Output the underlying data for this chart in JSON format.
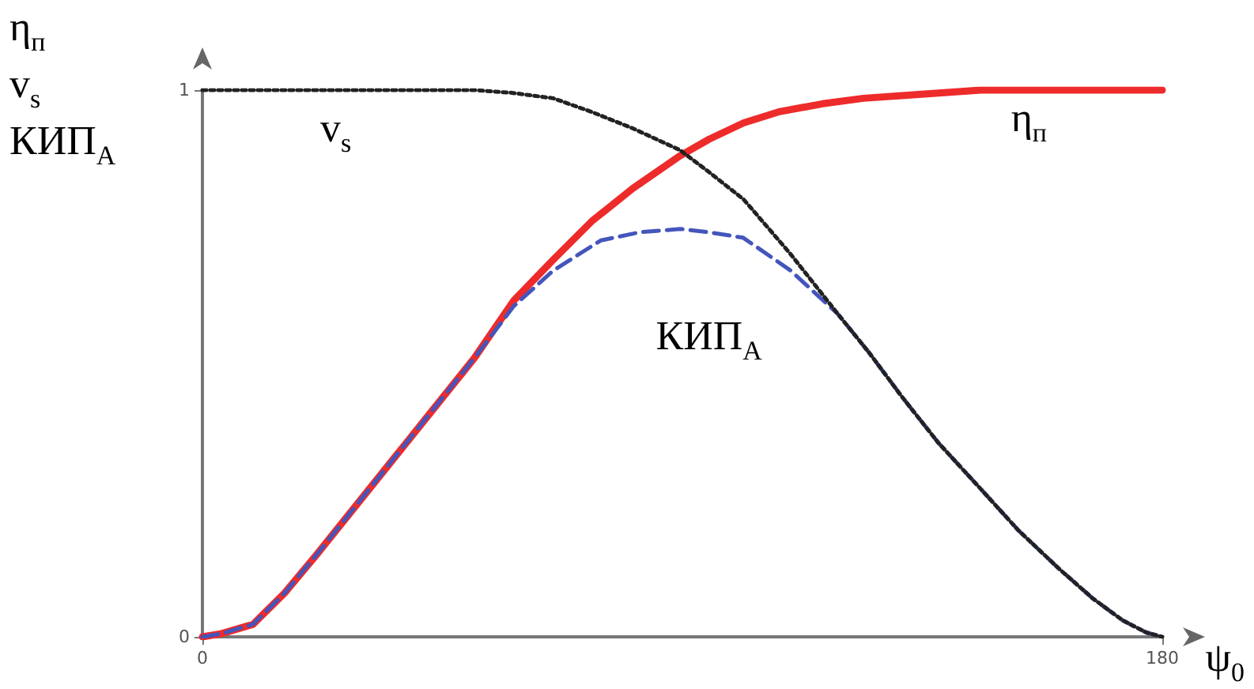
{
  "chart_data": {
    "type": "line",
    "xlabel": "ψ$_{0}$",
    "ylabel": "η$_{п}$\nv$_{s}$\nКИП$_{А}$",
    "xlim": [
      0,
      180
    ],
    "ylim": [
      0,
      1
    ],
    "xticks": [
      0,
      180
    ],
    "yticks": [
      0,
      1
    ],
    "grid": false,
    "legend": false,
    "marker": "none",
    "series": [
      {
        "name": "η$_{п}$",
        "color": "#ee2b2b",
        "line_style": "solid",
        "x": [
          0,
          3.6,
          9.5,
          15.4,
          21.4,
          28.8,
          36.2,
          43.6,
          51,
          58.4,
          65.8,
          73,
          80.7,
          89.6,
          95,
          101.5,
          108,
          116.3,
          124,
          131.2,
          146,
          160,
          180
        ],
        "values": [
          0,
          0.006,
          0.023,
          0.08,
          0.15,
          0.24,
          0.33,
          0.42,
          0.51,
          0.615,
          0.69,
          0.76,
          0.82,
          0.88,
          0.91,
          0.94,
          0.96,
          0.975,
          0.985,
          0.99,
          1,
          1,
          1
        ]
      },
      {
        "name": "КИП$_{А}$",
        "color": "#4455bb",
        "line_style": "dashed",
        "x": [
          0,
          3.6,
          9.5,
          15.4,
          21.4,
          28.8,
          36.2,
          43.6,
          51,
          58.4,
          65.8,
          74.7,
          82,
          89.6,
          95,
          101.4,
          110.3,
          119.2,
          125,
          131.1,
          138,
          146,
          153,
          160.7,
          167,
          172.6,
          177,
          180
        ],
        "values": [
          0,
          0.006,
          0.023,
          0.08,
          0.15,
          0.24,
          0.33,
          0.42,
          0.51,
          0.605,
          0.67,
          0.725,
          0.74,
          0.746,
          0.74,
          0.73,
          0.67,
          0.59,
          0.52,
          0.44,
          0.355,
          0.27,
          0.195,
          0.124,
          0.07,
          0.03,
          0.008,
          0
        ]
      },
      {
        "name": "v$_{s}$",
        "color": "#222222",
        "line_style": "dotted",
        "x": [
          0,
          25,
          51,
          58,
          65.8,
          73,
          80.7,
          89.6,
          95,
          101.5,
          110.3,
          119.2,
          125,
          131.1,
          138,
          146,
          153,
          160.7,
          167,
          172.6,
          177,
          180
        ],
        "values": [
          1,
          1,
          1,
          0.995,
          0.985,
          0.96,
          0.93,
          0.89,
          0.85,
          0.8,
          0.7,
          0.59,
          0.52,
          0.44,
          0.355,
          0.27,
          0.195,
          0.124,
          0.07,
          0.03,
          0.008,
          0
        ]
      }
    ]
  }
}
